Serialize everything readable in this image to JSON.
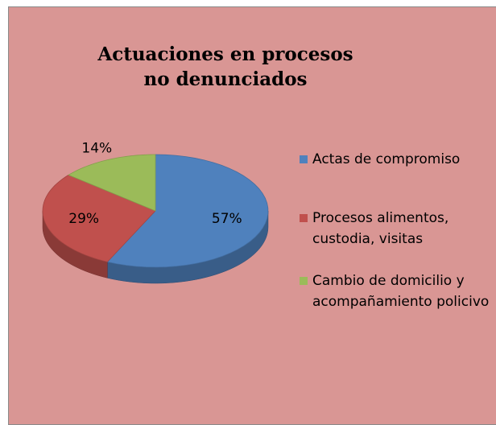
{
  "chart_data": {
    "type": "pie3d",
    "title": "Actuaciones en procesos no denunciados",
    "categories": [
      "Actas de compromiso",
      "Procesos alimentos, custodia, visitas",
      "Cambio de domicilio y acompañamiento policivo"
    ],
    "values": [
      57,
      29,
      14
    ],
    "value_labels": [
      "57%",
      "29%",
      "14%"
    ],
    "colors": [
      "#4f81bd",
      "#c0504d",
      "#9bbb59"
    ],
    "legend": "right"
  }
}
